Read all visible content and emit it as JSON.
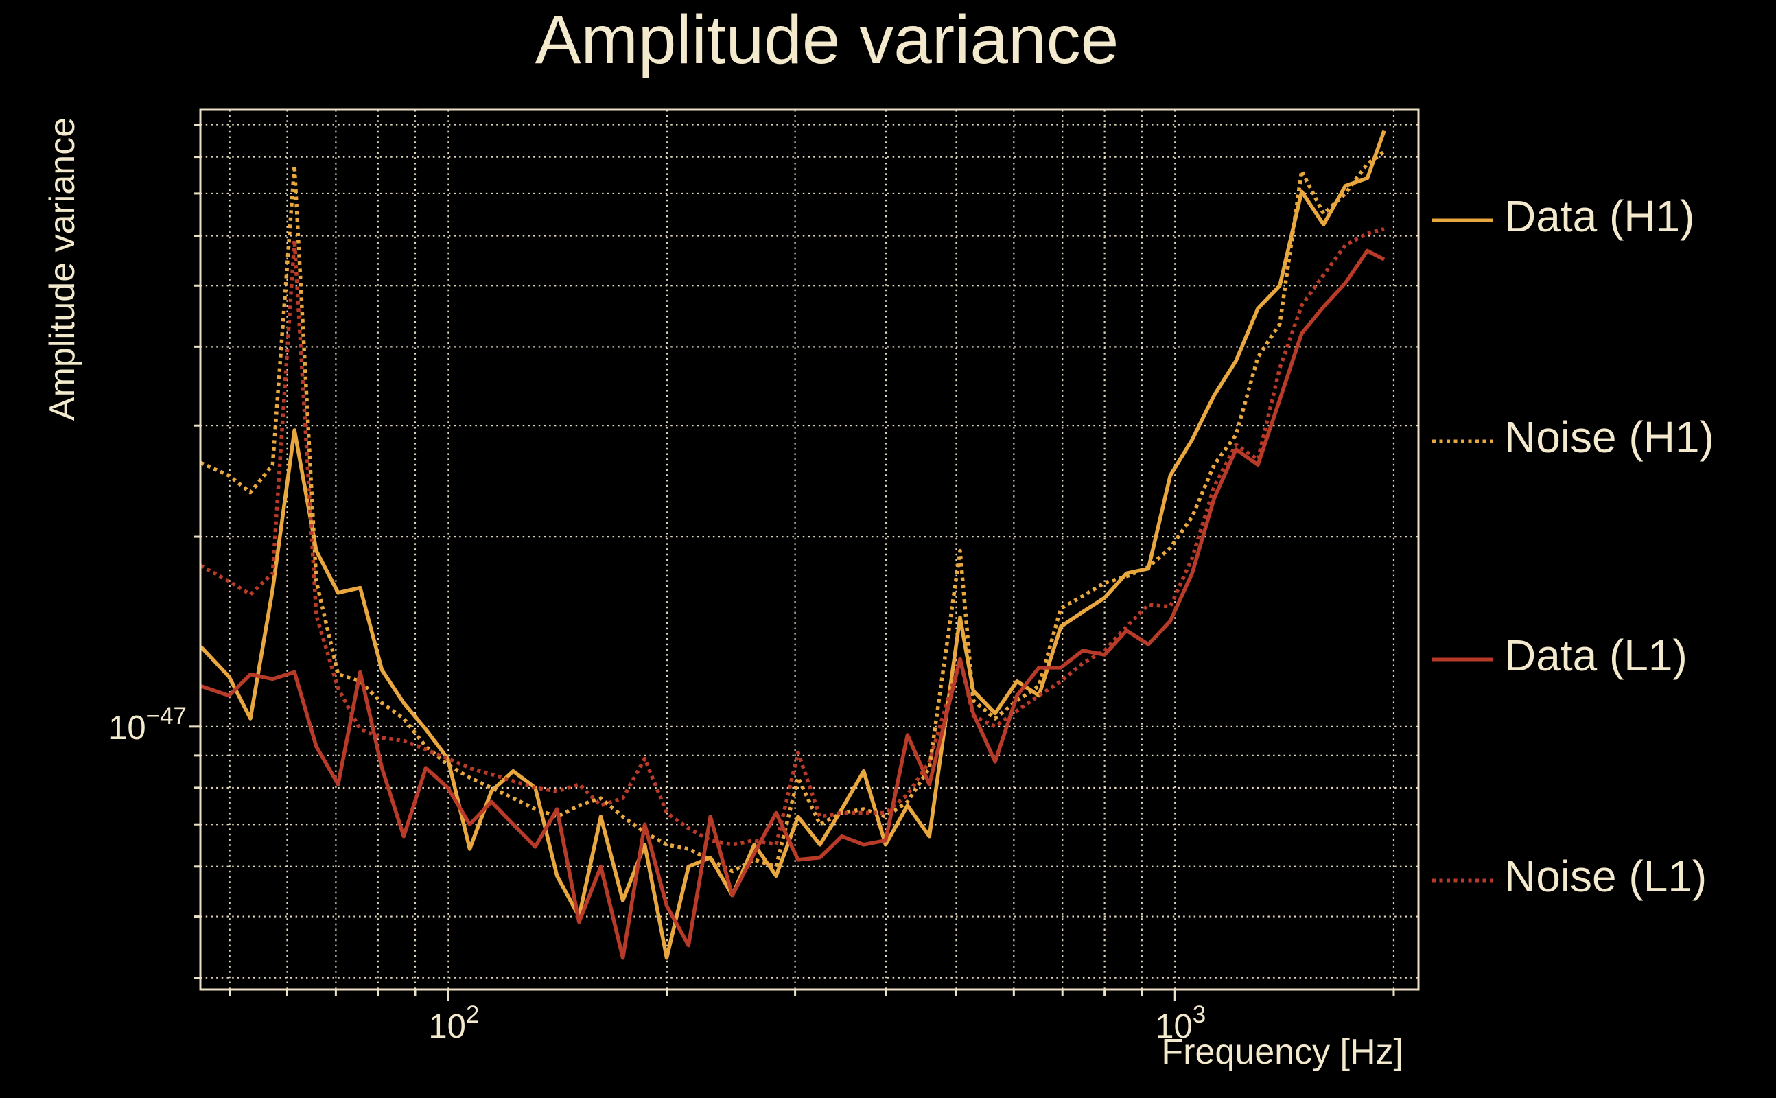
{
  "figure": {
    "title": "Amplitude variance",
    "background_color": "#000000",
    "text_color": "#f3e9cd",
    "grid_color": "#ece1c4"
  },
  "axes": {
    "xlabel": "Frequency [Hz]",
    "ylabel": "Amplitude variance",
    "x_tick_labels": [
      {
        "value": 100,
        "mantissa": "10",
        "exp": "2"
      },
      {
        "value": 1000,
        "mantissa": "10",
        "exp": "3"
      }
    ],
    "y_tick_labels": [
      {
        "value_1e48": 10,
        "mantissa": "10",
        "exp": "−47"
      }
    ],
    "x_minor_grid_hz": [
      50,
      60,
      70,
      80,
      90,
      200,
      300,
      400,
      500,
      600,
      700,
      800,
      900,
      2000
    ],
    "x_major_grid_hz": [
      100,
      1000
    ],
    "y_minor_grid_1e48": [
      4,
      5,
      6,
      7,
      8,
      9,
      20,
      30,
      40,
      50,
      60,
      70,
      80,
      90
    ],
    "y_major_grid_1e48": [
      10
    ]
  },
  "legend": {
    "entries": [
      {
        "label": "Data (H1)",
        "series": "data_h1",
        "style": "solid",
        "color": "#e9a83f"
      },
      {
        "label": "Noise (H1)",
        "series": "noise_h1",
        "style": "dotted",
        "color": "#e9a83f"
      },
      {
        "label": "Data (L1)",
        "series": "data_l1",
        "style": "solid",
        "color": "#b83a29"
      },
      {
        "label": "Noise (L1)",
        "series": "noise_l1",
        "style": "dotted",
        "color": "#b83a29"
      }
    ]
  },
  "chart_data": {
    "type": "line",
    "title": "Amplitude variance",
    "xlabel": "Frequency [Hz]",
    "ylabel": "Amplitude variance",
    "xscale": "log",
    "yscale": "log",
    "xlim_hz": [
      45.57,
      2163
    ],
    "ylim": [
      3.83e-48,
      9.5e-47
    ],
    "value_unit": "values below are amplitude variance in units of 1e-48",
    "grid": "both, dotted",
    "legend_position": "right-outside",
    "x_hz": [
      45.6,
      49.9,
      53.4,
      57.3,
      61.4,
      65.8,
      70.5,
      75.6,
      81.0,
      86.8,
      93.1,
      99.8,
      107.0,
      114.6,
      122.8,
      131.7,
      141.1,
      151.3,
      162.1,
      173.8,
      186.3,
      199.7,
      214.0,
      229.4,
      245.9,
      263.6,
      282.5,
      302.8,
      324.6,
      347.9,
      372.9,
      399.7,
      428.4,
      459.2,
      506.0,
      527.6,
      565.5,
      606.1,
      649.6,
      696.3,
      746.4,
      800.0,
      857.5,
      919.1,
      985.1,
      1055.9,
      1131.8,
      1213.1,
      1300.3,
      1393.7,
      1493.9,
      1601.2,
      1716.3,
      1839.6,
      1940.0
    ],
    "series": [
      {
        "name": "Data (H1)",
        "key": "data_h1",
        "color": "#e9a83f",
        "linestyle": "solid",
        "values_1e48": [
          13.4,
          12.0,
          10.3,
          16.5,
          29.5,
          19.0,
          16.3,
          16.6,
          12.3,
          10.9,
          9.9,
          8.9,
          6.4,
          7.9,
          8.5,
          8.0,
          5.8,
          5.0,
          7.2,
          5.3,
          6.5,
          4.3,
          6.0,
          6.2,
          5.4,
          6.5,
          5.8,
          7.2,
          6.5,
          7.4,
          8.5,
          6.5,
          7.5,
          6.7,
          14.9,
          11.4,
          10.5,
          11.8,
          11.2,
          14.4,
          15.2,
          16.0,
          17.5,
          17.8,
          25.0,
          28.5,
          33.5,
          38.0,
          46.0,
          50.0,
          70.5,
          62.5,
          72.0,
          74.0,
          88.0
        ]
      },
      {
        "name": "Noise (H1)",
        "key": "noise_h1",
        "color": "#e9a83f",
        "linestyle": "dotted",
        "values_1e48": [
          26.2,
          25.0,
          23.5,
          26.0,
          77.5,
          17.0,
          12.1,
          11.8,
          10.9,
          10.3,
          9.3,
          8.7,
          8.3,
          8.0,
          7.7,
          7.4,
          7.2,
          7.5,
          7.7,
          7.2,
          6.8,
          6.5,
          6.4,
          6.15,
          5.9,
          6.15,
          6.0,
          8.3,
          7.0,
          7.3,
          7.4,
          7.2,
          7.6,
          8.6,
          19.0,
          11.0,
          10.3,
          11.0,
          11.6,
          15.4,
          16.1,
          16.9,
          17.3,
          17.9,
          19.2,
          21.5,
          26.0,
          29.0,
          38.5,
          43.5,
          76.0,
          65.0,
          70.0,
          78.0,
          81.5
        ]
      },
      {
        "name": "Data (L1)",
        "key": "data_l1",
        "color": "#b83a29",
        "linestyle": "solid",
        "values_1e48": [
          11.6,
          11.2,
          12.1,
          11.9,
          12.2,
          9.3,
          8.1,
          12.2,
          8.6,
          6.7,
          8.6,
          8.0,
          7.0,
          7.6,
          7.0,
          6.45,
          7.4,
          4.9,
          6.0,
          4.3,
          7.0,
          5.2,
          4.5,
          7.2,
          5.4,
          6.3,
          7.3,
          6.15,
          6.2,
          6.7,
          6.5,
          6.6,
          9.7,
          8.1,
          12.8,
          10.5,
          8.8,
          11.2,
          12.4,
          12.4,
          13.2,
          13.0,
          14.2,
          13.5,
          14.7,
          17.5,
          23.0,
          27.5,
          26.0,
          33.0,
          42.0,
          46.3,
          50.5,
          56.8,
          55.0
        ]
      },
      {
        "name": "Noise (L1)",
        "key": "noise_l1",
        "color": "#b83a29",
        "linestyle": "dotted",
        "values_1e48": [
          18.0,
          17.0,
          16.2,
          17.5,
          59.0,
          15.0,
          11.5,
          9.9,
          9.6,
          9.5,
          9.2,
          8.9,
          8.6,
          8.4,
          8.2,
          8.0,
          7.9,
          8.1,
          7.5,
          7.7,
          8.9,
          7.3,
          6.9,
          6.6,
          6.5,
          6.6,
          6.5,
          9.1,
          7.2,
          7.3,
          7.3,
          7.3,
          7.8,
          8.8,
          12.8,
          10.4,
          10.0,
          10.6,
          11.2,
          11.8,
          12.6,
          13.2,
          14.4,
          15.6,
          15.5,
          18.5,
          24.0,
          28.0,
          26.5,
          37.0,
          46.5,
          52.0,
          58.0,
          60.5,
          61.5
        ]
      }
    ]
  }
}
